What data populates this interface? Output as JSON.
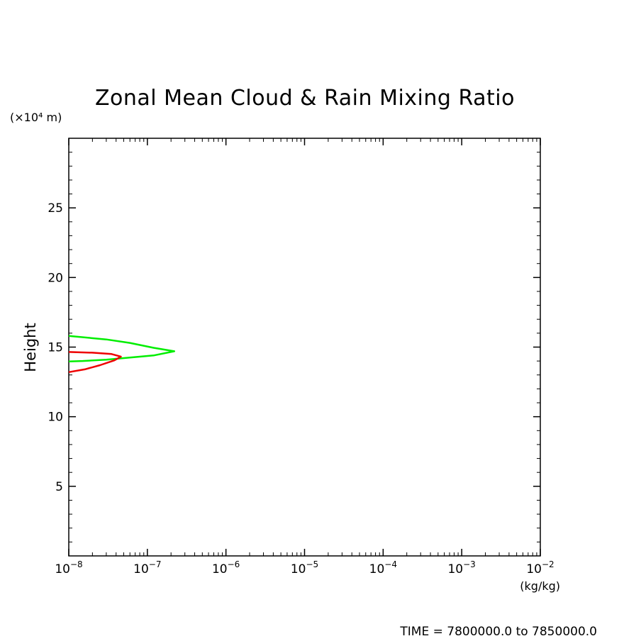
{
  "chart_data": {
    "type": "line",
    "title": "Zonal Mean Cloud & Rain Mixing Ratio",
    "ylabel": "Height",
    "y_unit_label": "(×10⁴ m)",
    "x_unit_label": "(kg/kg)",
    "x_scale": "log",
    "xlim": [
      1e-08,
      0.01
    ],
    "ylim": [
      0,
      30000
    ],
    "x_ticks": [
      {
        "value": 1e-08,
        "base": "10",
        "exp": "−8"
      },
      {
        "value": 1e-07,
        "base": "10",
        "exp": "−7"
      },
      {
        "value": 1e-06,
        "base": "10",
        "exp": "−6"
      },
      {
        "value": 1e-05,
        "base": "10",
        "exp": "−5"
      },
      {
        "value": 0.0001,
        "base": "10",
        "exp": "−4"
      },
      {
        "value": 0.001,
        "base": "10",
        "exp": "−3"
      },
      {
        "value": 0.01,
        "base": "10",
        "exp": "−2"
      }
    ],
    "y_ticks": [
      {
        "value": 5000,
        "label": "5"
      },
      {
        "value": 10000,
        "label": "10"
      },
      {
        "value": 15000,
        "label": "15"
      },
      {
        "value": 20000,
        "label": "20"
      },
      {
        "value": 25000,
        "label": "25"
      }
    ],
    "series": [
      {
        "color": "#00ee00",
        "points": [
          [
            1e-08,
            15800
          ],
          [
            3e-08,
            15550
          ],
          [
            6e-08,
            15300
          ],
          [
            1.2e-07,
            14950
          ],
          [
            2.2e-07,
            14700
          ],
          [
            1.2e-07,
            14400
          ],
          [
            6e-08,
            14250
          ],
          [
            3e-08,
            14100
          ],
          [
            1.5e-08,
            14000
          ],
          [
            1e-08,
            13970
          ]
        ]
      },
      {
        "color": "#ee0000",
        "points": [
          [
            1e-08,
            14650
          ],
          [
            2e-08,
            14600
          ],
          [
            3.5e-08,
            14500
          ],
          [
            4.6e-08,
            14320
          ],
          [
            3.8e-08,
            14050
          ],
          [
            2.5e-08,
            13700
          ],
          [
            1.6e-08,
            13400
          ],
          [
            1e-08,
            13200
          ]
        ]
      }
    ]
  },
  "footer": {
    "time_label": "TIME = 7800000.0 to 7850000.0"
  }
}
